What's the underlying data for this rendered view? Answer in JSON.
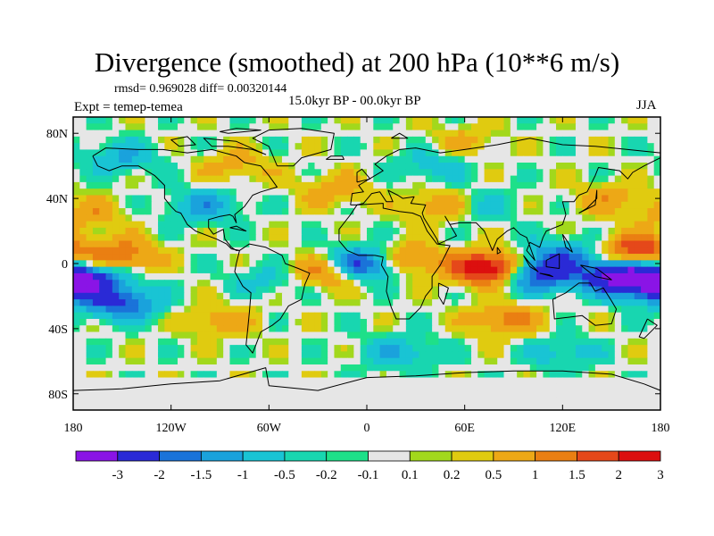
{
  "chart_data": {
    "type": "heatmap",
    "title": "Divergence (smoothed) at 200 hPa (10**6 m/s)",
    "stats_text": "rmsd= 0.969028 diff= 0.00320144",
    "left_subtitle": "Expt = temep-temea",
    "center_subtitle": "15.0kyr BP - 00.0kyr BP",
    "right_subtitle": "JJA",
    "x_ticks": [
      {
        "value": -180,
        "label": "180"
      },
      {
        "value": -120,
        "label": "120W"
      },
      {
        "value": -60,
        "label": "60W"
      },
      {
        "value": 0,
        "label": "0"
      },
      {
        "value": 60,
        "label": "60E"
      },
      {
        "value": 120,
        "label": "120E"
      },
      {
        "value": 180,
        "label": "180"
      }
    ],
    "y_ticks": [
      {
        "value": 80,
        "label": "80N"
      },
      {
        "value": 40,
        "label": "40N"
      },
      {
        "value": 0,
        "label": "0"
      },
      {
        "value": -40,
        "label": "40S"
      },
      {
        "value": -80,
        "label": "80S"
      }
    ],
    "xlim": [
      -180,
      180
    ],
    "ylim": [
      -90,
      90
    ],
    "colorbar": {
      "levels": [
        "-3",
        "-2",
        "-1.5",
        "-1",
        "-0.5",
        "-0.2",
        "-0.1",
        "0.1",
        "0.2",
        "0.5",
        "1",
        "1.5",
        "2",
        "3"
      ],
      "colors": [
        "#8a14e6",
        "#2a2ad6",
        "#1a73d9",
        "#1aa2dc",
        "#19c4d4",
        "#18d6b0",
        "#1ee089",
        "#e6e6e6",
        "#a2d81c",
        "#e0cb10",
        "#eda816",
        "#ea7f12",
        "#e5481a",
        "#dc0f0f"
      ]
    },
    "anomaly_centers": [
      {
        "lon": 155,
        "lat": -8,
        "value": -3.2
      },
      {
        "lon": 105,
        "lat": -7,
        "value": -2.5
      },
      {
        "lon": 0,
        "lat": 0,
        "value": -3.0
      },
      {
        "lon": -150,
        "lat": -25,
        "value": -2.0
      },
      {
        "lon": -172,
        "lat": -10,
        "value": -2.5
      },
      {
        "lon": 175,
        "lat": -15,
        "value": -1.5
      },
      {
        "lon": 120,
        "lat": 5,
        "value": -1.5
      },
      {
        "lon": -150,
        "lat": 65,
        "value": -1.0
      },
      {
        "lon": -100,
        "lat": 35,
        "value": -1.2
      },
      {
        "lon": 40,
        "lat": 60,
        "value": -0.8
      },
      {
        "lon": 20,
        "lat": -55,
        "value": -1.0
      },
      {
        "lon": 120,
        "lat": -55,
        "value": -0.8
      },
      {
        "lon": -60,
        "lat": -10,
        "value": -0.7
      },
      {
        "lon": 70,
        "lat": 35,
        "value": -0.7
      },
      {
        "lon": 75,
        "lat": -3,
        "value": 3.0
      },
      {
        "lon": 20,
        "lat": 2,
        "value": 1.8
      },
      {
        "lon": -25,
        "lat": -5,
        "value": 1.5
      },
      {
        "lon": 165,
        "lat": 8,
        "value": 2.0
      },
      {
        "lon": -150,
        "lat": 5,
        "value": 1.5
      },
      {
        "lon": 85,
        "lat": -35,
        "value": 1.2
      },
      {
        "lon": 45,
        "lat": 35,
        "value": 1.0
      },
      {
        "lon": -90,
        "lat": -35,
        "value": 0.8
      },
      {
        "lon": -20,
        "lat": 45,
        "value": 0.8
      },
      {
        "lon": 150,
        "lat": 40,
        "value": 0.8
      },
      {
        "lon": -170,
        "lat": 30,
        "value": 0.8
      },
      {
        "lon": -80,
        "lat": 60,
        "value": 0.7
      },
      {
        "lon": 60,
        "lat": 75,
        "value": 0.6
      }
    ]
  }
}
